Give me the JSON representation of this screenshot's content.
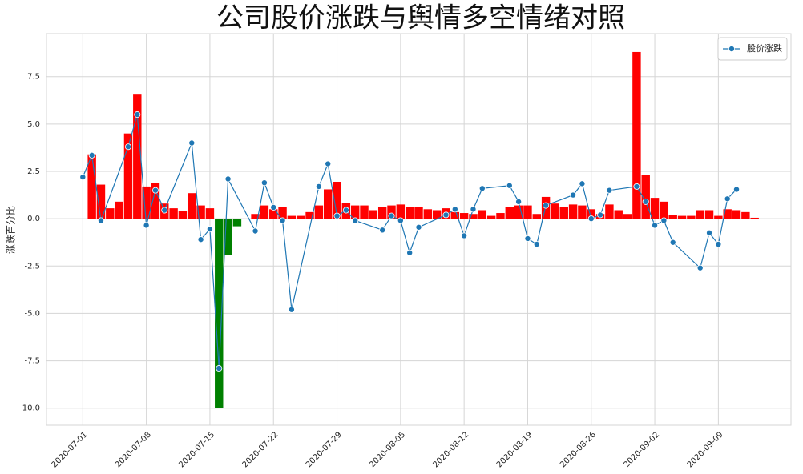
{
  "chart_data": {
    "type": "bar-line",
    "title": "公司股价涨跌与舆情多空情绪对照",
    "ylabel": "涨跌百分比",
    "ylim": [
      -10.9,
      9.77
    ],
    "yticks": [
      {
        "value": -10,
        "label": "-10.0"
      },
      -7.5,
      {
        "value": -5,
        "label": "-5.0"
      },
      -2.5,
      {
        "value": 0,
        "label": "0.0"
      },
      2.5,
      {
        "value": 5,
        "label": "5.0"
      },
      7.5
    ],
    "xlim": [
      "2020-06-27",
      "2020-09-17"
    ],
    "xticks": [
      "2020-07-01",
      "2020-07-08",
      "2020-07-15",
      "2020-07-22",
      "2020-07-29",
      "2020-08-05",
      "2020-08-12",
      "2020-08-19",
      "2020-08-26",
      "2020-09-02",
      "2020-09-09"
    ],
    "grid": true,
    "legend": "upper right",
    "series": [
      {
        "type": "bar",
        "positive_color": "#ff0000",
        "negative_color": "#008000",
        "x": [
          "2020-07-02",
          "2020-07-03",
          "2020-07-04",
          "2020-07-05",
          "2020-07-06",
          "2020-07-07",
          "2020-07-08",
          "2020-07-09",
          "2020-07-10",
          "2020-07-11",
          "2020-07-12",
          "2020-07-13",
          "2020-07-14",
          "2020-07-15",
          "2020-07-16",
          "2020-07-17",
          "2020-07-18",
          "2020-07-19",
          "2020-07-20",
          "2020-07-21",
          "2020-07-22",
          "2020-07-23",
          "2020-07-24",
          "2020-07-25",
          "2020-07-26",
          "2020-07-27",
          "2020-07-28",
          "2020-07-29",
          "2020-07-30",
          "2020-07-31",
          "2020-08-01",
          "2020-08-02",
          "2020-08-03",
          "2020-08-04",
          "2020-08-05",
          "2020-08-06",
          "2020-08-07",
          "2020-08-08",
          "2020-08-09",
          "2020-08-10",
          "2020-08-11",
          "2020-08-12",
          "2020-08-13",
          "2020-08-14",
          "2020-08-15",
          "2020-08-16",
          "2020-08-17",
          "2020-08-18",
          "2020-08-19",
          "2020-08-20",
          "2020-08-21",
          "2020-08-22",
          "2020-08-23",
          "2020-08-24",
          "2020-08-25",
          "2020-08-26",
          "2020-08-27",
          "2020-08-28",
          "2020-08-29",
          "2020-08-30",
          "2020-08-31",
          "2020-09-01",
          "2020-09-02",
          "2020-09-03",
          "2020-09-04",
          "2020-09-05",
          "2020-09-06",
          "2020-09-07",
          "2020-09-08",
          "2020-09-09",
          "2020-09-10",
          "2020-09-11",
          "2020-09-12",
          "2020-09-13"
        ],
        "values": [
          3.4,
          1.8,
          0.55,
          0.9,
          4.5,
          6.55,
          1.7,
          1.9,
          0.8,
          0.55,
          0.4,
          1.35,
          0.7,
          0.55,
          -10,
          -1.9,
          -0.4,
          0,
          0.25,
          0.7,
          0.5,
          0.6,
          0.15,
          0.15,
          0.35,
          0.7,
          1.55,
          1.95,
          0.85,
          0.7,
          0.7,
          0.45,
          0.6,
          0.7,
          0.75,
          0.6,
          0.6,
          0.5,
          0.45,
          0.55,
          0.35,
          0.3,
          0.25,
          0.45,
          0.15,
          0.3,
          0.6,
          0.7,
          0.7,
          0.25,
          1.15,
          0.8,
          0.6,
          0.75,
          0.7,
          0.5,
          0.25,
          0.75,
          0.45,
          0.25,
          8.8,
          2.3,
          1.1,
          0.9,
          0.2,
          0.15,
          0.15,
          0.45,
          0.45,
          0.15,
          0.5,
          0.45,
          0.35,
          0.05
        ]
      },
      {
        "type": "line",
        "name": "股价涨跌",
        "color": "#1f77b4",
        "x": [
          "2020-07-01",
          "2020-07-02",
          "2020-07-03",
          "2020-07-06",
          "2020-07-07",
          "2020-07-08",
          "2020-07-09",
          "2020-07-10",
          "2020-07-13",
          "2020-07-14",
          "2020-07-15",
          "2020-07-16",
          "2020-07-17",
          "2020-07-20",
          "2020-07-21",
          "2020-07-22",
          "2020-07-23",
          "2020-07-24",
          "2020-07-27",
          "2020-07-28",
          "2020-07-29",
          "2020-07-30",
          "2020-07-31",
          "2020-08-03",
          "2020-08-04",
          "2020-08-05",
          "2020-08-06",
          "2020-08-07",
          "2020-08-10",
          "2020-08-11",
          "2020-08-12",
          "2020-08-13",
          "2020-08-14",
          "2020-08-17",
          "2020-08-18",
          "2020-08-19",
          "2020-08-20",
          "2020-08-21",
          "2020-08-24",
          "2020-08-25",
          "2020-08-26",
          "2020-08-27",
          "2020-08-28",
          "2020-08-31",
          "2020-09-01",
          "2020-09-02",
          "2020-09-03",
          "2020-09-04",
          "2020-09-07",
          "2020-09-08",
          "2020-09-09",
          "2020-09-10",
          "2020-09-11"
        ],
        "values": [
          2.2,
          3.35,
          -0.1,
          3.8,
          5.5,
          -0.35,
          1.5,
          0.45,
          4.0,
          -1.1,
          -0.55,
          -7.9,
          2.1,
          -0.65,
          1.9,
          0.6,
          -0.1,
          -4.8,
          1.7,
          2.9,
          0.15,
          0.45,
          -0.1,
          -0.6,
          0.15,
          -0.1,
          -1.8,
          -0.45,
          0.2,
          0.5,
          -0.9,
          0.5,
          1.6,
          1.75,
          0.9,
          -1.05,
          -1.35,
          0.7,
          1.25,
          1.85,
          0.0,
          0.2,
          1.5,
          1.7,
          0.9,
          -0.35,
          -0.1,
          -1.25,
          -2.6,
          -0.75,
          -1.35,
          1.05,
          1.55
        ]
      }
    ]
  }
}
